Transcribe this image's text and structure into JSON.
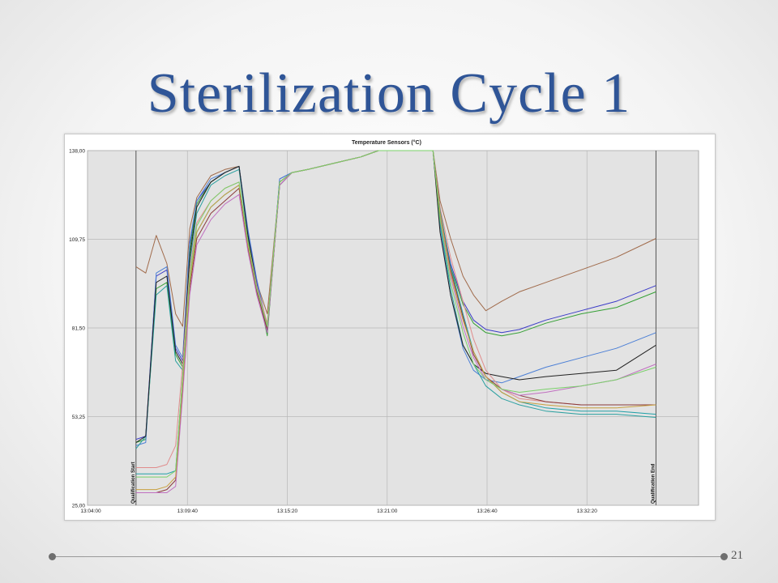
{
  "slide": {
    "title": "Sterilization Cycle 1",
    "page_number": "21"
  },
  "chart_data": {
    "type": "line",
    "title": "Temperature Sensors (°C)",
    "ylim": [
      25,
      138
    ],
    "y_ticks": [
      "138,00",
      "109,75",
      "81,50",
      "53,25",
      "25,00"
    ],
    "y_tick_values": [
      138,
      109.75,
      81.5,
      53.25,
      25
    ],
    "xlim": [
      "13:04:00",
      "13:38:40"
    ],
    "x_ticks": [
      "13:04:00",
      "13:09:40",
      "13:15:20",
      "13:21:00",
      "13:26:40",
      "13:32:20"
    ],
    "x_tick_minutes": [
      0,
      5.667,
      11.333,
      17,
      22.667,
      28.333
    ],
    "grid": true,
    "markers": [
      {
        "label": "Qualification Start",
        "time": "13:06:45"
      },
      {
        "label": "Qualification End",
        "time": "13:36:15"
      }
    ],
    "x_minutes": [
      2.75,
      3.3,
      3.9,
      4.5,
      5.0,
      5.4,
      5.8,
      6.2,
      7.0,
      7.8,
      8.6,
      9.1,
      9.6,
      10.2,
      10.9,
      11.6,
      12.5,
      14.0,
      15.5,
      16.5,
      17.5,
      18.5,
      19.6,
      20.0,
      20.6,
      21.3,
      21.9,
      22.6,
      23.5,
      24.5,
      26.0,
      28.0,
      30.0,
      32.25
    ],
    "series": [
      {
        "color": "#a06a4a",
        "values": [
          101,
          99,
          111,
          102,
          86,
          82,
          113,
          123,
          130,
          132,
          133,
          112,
          96,
          86,
          128,
          131,
          132,
          134,
          136,
          138,
          138,
          138,
          138,
          122,
          110,
          98,
          92,
          87,
          90,
          93,
          96,
          100,
          104,
          110
        ]
      },
      {
        "color": "#3a3ac8",
        "values": [
          46,
          47,
          98,
          100,
          75,
          71,
          108,
          122,
          128,
          131,
          133,
          112,
          96,
          81,
          129,
          131,
          132,
          134,
          136,
          138,
          138,
          138,
          138,
          118,
          102,
          90,
          84,
          81,
          80,
          81,
          84,
          87,
          90,
          95
        ]
      },
      {
        "color": "#35a035",
        "values": [
          45,
          46,
          94,
          96,
          73,
          69,
          106,
          121,
          128,
          131,
          133,
          111,
          95,
          79,
          128,
          131,
          132,
          134,
          136,
          138,
          138,
          138,
          138,
          117,
          101,
          89,
          83,
          80,
          79,
          80,
          83,
          86,
          88,
          93
        ]
      },
      {
        "color": "#4b7fd6",
        "values": [
          44,
          45,
          99,
          101,
          76,
          72,
          109,
          122,
          129,
          131,
          133,
          113,
          97,
          82,
          129,
          131,
          132,
          134,
          136,
          138,
          138,
          138,
          138,
          114,
          92,
          75,
          68,
          65,
          64,
          66,
          69,
          72,
          75,
          80
        ]
      },
      {
        "color": "#2aa0a0",
        "values": [
          43,
          47,
          92,
          95,
          71,
          68,
          102,
          118,
          127,
          130,
          132,
          110,
          94,
          80,
          128,
          131,
          132,
          134,
          136,
          138,
          138,
          138,
          138,
          115,
          94,
          76,
          70,
          63,
          59,
          57,
          55,
          54,
          54,
          53
        ]
      },
      {
        "color": "#222222",
        "values": [
          45,
          47,
          96,
          98,
          74,
          70,
          104,
          120,
          128,
          131,
          133,
          111,
          95,
          80,
          128,
          131,
          132,
          134,
          136,
          138,
          138,
          138,
          138,
          112,
          92,
          76,
          70,
          67,
          66,
          65,
          66,
          67,
          68,
          76
        ]
      },
      {
        "color": "#e08c8c",
        "values": [
          37,
          37,
          37,
          38,
          44,
          70,
          100,
          115,
          122,
          126,
          128,
          109,
          95,
          83,
          128,
          131,
          132,
          134,
          136,
          138,
          138,
          138,
          138,
          120,
          104,
          90,
          78,
          68,
          62,
          59,
          58,
          57,
          57,
          57
        ]
      },
      {
        "color": "#1fa0a8",
        "values": [
          35,
          35,
          35,
          35,
          36,
          66,
          96,
          112,
          120,
          124,
          127,
          108,
          94,
          82,
          127,
          131,
          132,
          134,
          136,
          138,
          138,
          138,
          138,
          119,
          101,
          86,
          74,
          66,
          61,
          58,
          56,
          55,
          55,
          54
        ]
      },
      {
        "color": "#8a3a3a",
        "values": [
          29,
          29,
          29,
          30,
          33,
          62,
          94,
          110,
          118,
          122,
          126,
          107,
          93,
          81,
          127,
          131,
          132,
          134,
          136,
          138,
          138,
          138,
          138,
          118,
          100,
          85,
          73,
          66,
          62,
          60,
          58,
          57,
          57,
          57
        ]
      },
      {
        "color": "#c070c0",
        "values": [
          29,
          29,
          29,
          29,
          31,
          60,
          92,
          108,
          116,
          121,
          124,
          106,
          92,
          80,
          127,
          131,
          132,
          134,
          136,
          138,
          138,
          138,
          138,
          117,
          98,
          82,
          72,
          65,
          62,
          60,
          61,
          63,
          65,
          70
        ]
      },
      {
        "color": "#c8a040",
        "values": [
          30,
          30,
          30,
          31,
          34,
          64,
          96,
          112,
          120,
          124,
          127,
          108,
          94,
          82,
          128,
          131,
          132,
          134,
          136,
          138,
          138,
          138,
          138,
          118,
          99,
          84,
          74,
          66,
          61,
          58,
          57,
          56,
          56,
          57
        ]
      },
      {
        "color": "#7ad06a",
        "values": [
          34,
          34,
          34,
          34,
          36,
          66,
          98,
          114,
          122,
          126,
          128,
          109,
          94,
          82,
          128,
          131,
          132,
          134,
          136,
          138,
          138,
          138,
          138,
          116,
          96,
          80,
          70,
          65,
          62,
          61,
          62,
          63,
          65,
          69
        ]
      }
    ]
  }
}
